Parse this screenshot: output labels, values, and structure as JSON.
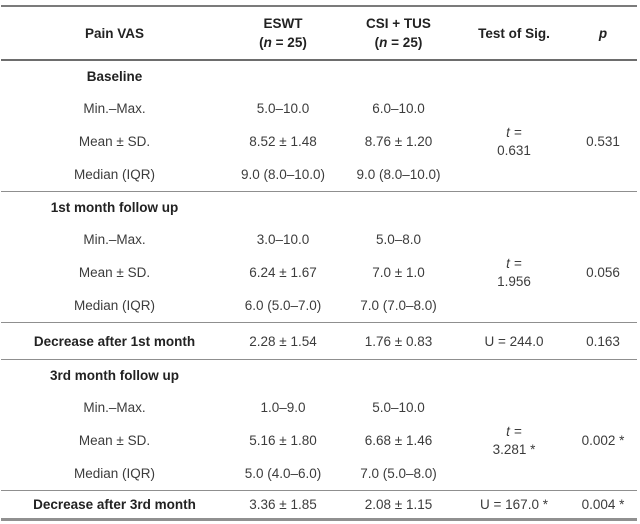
{
  "header": {
    "col1": "Pain VAS",
    "eswt_name": "ESWT",
    "csi_name": "CSI + TUS",
    "n_open": "(",
    "n_symbol": "n",
    "n_rest": " = 25)",
    "test": "Test of Sig.",
    "p": "p"
  },
  "sections": [
    {
      "title": "Baseline",
      "rows": [
        {
          "label": "Min.–Max.",
          "eswt": "5.0–10.0",
          "csi": "6.0–10.0"
        },
        {
          "label": "Mean ± SD.",
          "eswt": "8.52 ± 1.48",
          "csi": "8.76 ± 1.20"
        },
        {
          "label": "Median (IQR)",
          "eswt": "9.0 (8.0–10.0)",
          "csi": "9.0 (8.0–10.0)"
        }
      ],
      "test_symbol": "t",
      "test_eq": "=",
      "test_value": "0.631",
      "p": "0.531"
    },
    {
      "title": "1st month follow up",
      "rows": [
        {
          "label": "Min.–Max.",
          "eswt": "3.0–10.0",
          "csi": "5.0–8.0"
        },
        {
          "label": "Mean ± SD.",
          "eswt": "6.24 ± 1.67",
          "csi": "7.0 ± 1.0"
        },
        {
          "label": "Median (IQR)",
          "eswt": "6.0 (5.0–7.0)",
          "csi": "7.0 (7.0–8.0)"
        }
      ],
      "test_symbol": "t",
      "test_eq": "=",
      "test_value": "1.956",
      "p": "0.056"
    },
    {
      "title": "3rd month follow up",
      "rows": [
        {
          "label": "Min.–Max.",
          "eswt": "1.0–9.0",
          "csi": "5.0–10.0"
        },
        {
          "label": "Mean ± SD.",
          "eswt": "5.16 ± 1.80",
          "csi": "6.68 ± 1.46"
        },
        {
          "label": "Median (IQR)",
          "eswt": "5.0 (4.0–6.0)",
          "csi": "7.0 (5.0–8.0)"
        }
      ],
      "test_symbol": "t",
      "test_eq": "=",
      "test_value": "3.281 *",
      "p": "0.002 *"
    }
  ],
  "summary_rows": [
    {
      "label": "Decrease after 1st month",
      "eswt": "2.28 ± 1.54",
      "csi": "1.76 ± 0.83",
      "test": "U = 244.0",
      "p": "0.163"
    },
    {
      "label": "Decrease after 3rd month",
      "eswt": "3.36 ± 1.85",
      "csi": "2.08 ± 1.15",
      "test": "U = 167.0 *",
      "p": "0.004 *"
    }
  ]
}
